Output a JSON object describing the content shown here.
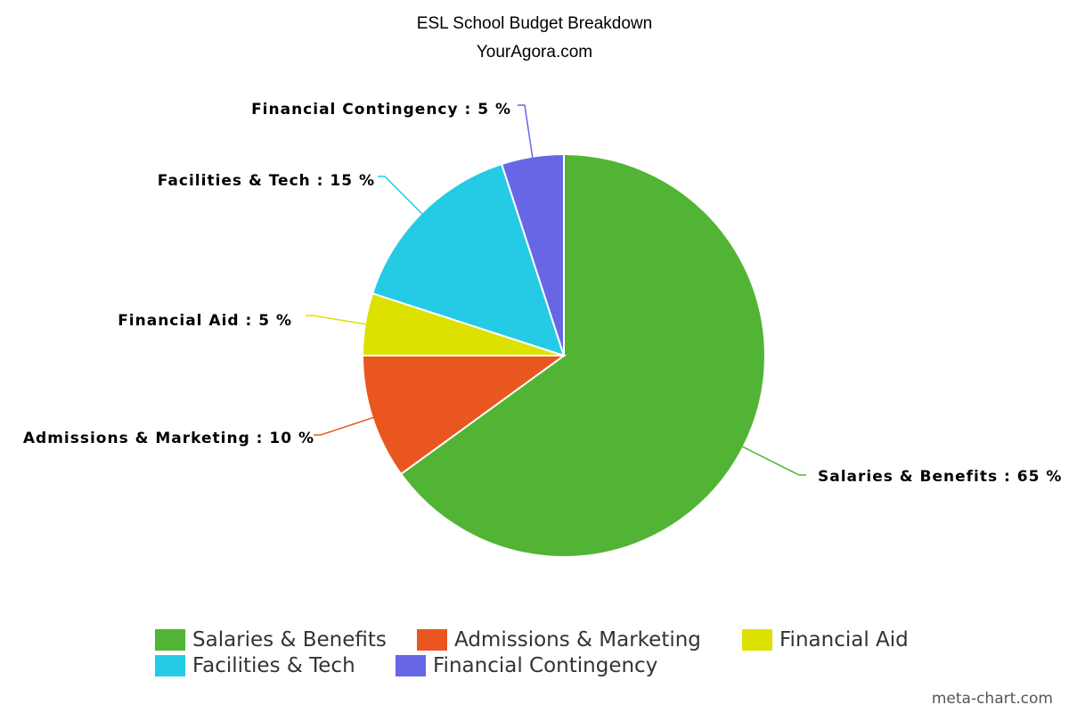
{
  "chart_data": {
    "type": "pie",
    "title": "ESL School Budget Breakdown",
    "subtitle": "YourAgora.com",
    "categories": [
      "Salaries & Benefits",
      "Admissions & Marketing",
      "Financial Aid",
      "Facilities & Tech",
      "Financial Contingency"
    ],
    "values": [
      65,
      10,
      5,
      15,
      5
    ],
    "labels": [
      "Salaries & Benefits : 65 %",
      "Admissions & Marketing : 10 %",
      "Financial Aid : 5 %",
      "Facilities & Tech : 15 %",
      "Financial Contingency : 5 %"
    ],
    "colors": [
      "#52b435",
      "#ea561f",
      "#dde100",
      "#25cbe5",
      "#6767e5"
    ],
    "legend_position": "bottom"
  },
  "credit": "meta-chart.com"
}
